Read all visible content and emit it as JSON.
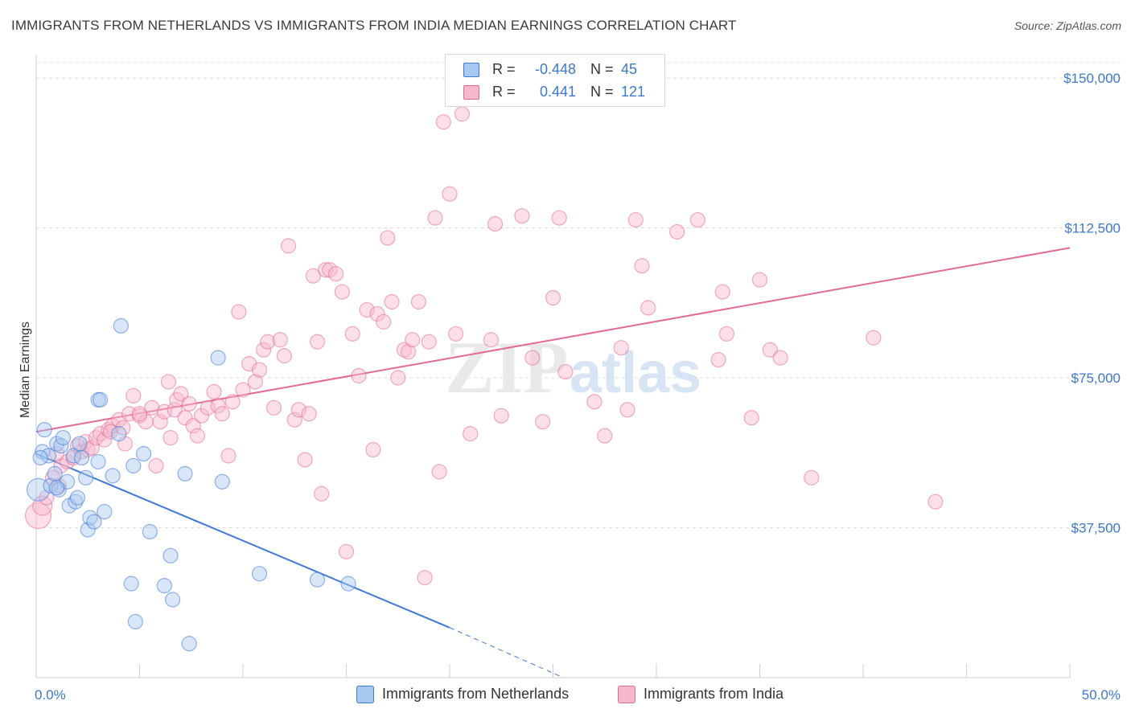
{
  "title": "IMMIGRANTS FROM NETHERLANDS VS IMMIGRANTS FROM INDIA MEDIAN EARNINGS CORRELATION CHART",
  "source": "Source: ZipAtlas.com",
  "watermark": "ZIPatlas",
  "legend": {
    "rows": [
      {
        "r_label": "R =",
        "r_value": "-0.448",
        "n_label": "N =",
        "n_value": "45",
        "color": "#a8c8f0"
      },
      {
        "r_label": "R =",
        "r_value": "0.441",
        "n_label": "N =",
        "n_value": "121",
        "color": "#f8b8cc"
      }
    ]
  },
  "bottom_legend": [
    {
      "label": "Immigrants from Netherlands",
      "color": "#a8c8f0"
    },
    {
      "label": "Immigrants from India",
      "color": "#f8b8cc"
    }
  ],
  "chart_data": {
    "type": "scatter",
    "title": "IMMIGRANTS FROM NETHERLANDS VS IMMIGRANTS FROM INDIA MEDIAN EARNINGS CORRELATION CHART",
    "xlabel": "",
    "ylabel": "Median Earnings",
    "xlim": [
      0,
      50
    ],
    "ylim": [
      0,
      150000
    ],
    "x_tick_labels": [
      "0.0%",
      "50.0%"
    ],
    "y_ticks": [
      37500,
      75000,
      112500,
      150000
    ],
    "y_tick_labels": [
      "$37,500",
      "$75,000",
      "$112,500",
      "$150,000"
    ],
    "grid": true,
    "legend_position": "top-center",
    "series": [
      {
        "name": "Immigrants from Netherlands",
        "color": "#3d78d8",
        "fill": "#a8c8f0",
        "trend": {
          "x": [
            0,
            20
          ],
          "y": [
            56000,
            12500
          ],
          "dashed_to": [
            25.5,
            0
          ]
        },
        "points": [
          [
            0.1,
            47000
          ],
          [
            0.3,
            56500
          ],
          [
            0.4,
            62000
          ],
          [
            0.6,
            55500
          ],
          [
            0.7,
            48000
          ],
          [
            0.9,
            51000
          ],
          [
            1.0,
            58500
          ],
          [
            1.1,
            47000
          ],
          [
            1.2,
            58000
          ],
          [
            1.3,
            60000
          ],
          [
            1.5,
            49000
          ],
          [
            1.6,
            43000
          ],
          [
            1.8,
            55500
          ],
          [
            1.9,
            44000
          ],
          [
            2.0,
            45000
          ],
          [
            2.1,
            58500
          ],
          [
            2.2,
            55000
          ],
          [
            2.4,
            50000
          ],
          [
            2.5,
            37000
          ],
          [
            2.6,
            40000
          ],
          [
            2.8,
            39000
          ],
          [
            3.0,
            54000
          ],
          [
            3.0,
            69500
          ],
          [
            3.1,
            69500
          ],
          [
            3.3,
            41500
          ],
          [
            3.7,
            50500
          ],
          [
            4.0,
            61000
          ],
          [
            4.1,
            88000
          ],
          [
            4.6,
            23500
          ],
          [
            4.7,
            53000
          ],
          [
            4.8,
            14000
          ],
          [
            5.2,
            56000
          ],
          [
            5.5,
            36500
          ],
          [
            6.2,
            23000
          ],
          [
            6.5,
            30500
          ],
          [
            6.6,
            19500
          ],
          [
            7.2,
            51000
          ],
          [
            7.4,
            8500
          ],
          [
            8.8,
            80000
          ],
          [
            9.0,
            49000
          ],
          [
            10.8,
            26000
          ],
          [
            13.6,
            24500
          ],
          [
            15.1,
            23500
          ],
          [
            0.2,
            55000
          ],
          [
            1.0,
            47500
          ]
        ]
      },
      {
        "name": "Immigrants from India",
        "color": "#e36a94",
        "fill": "#f8b8cc",
        "trend": {
          "x": [
            0,
            50
          ],
          "y": [
            61500,
            107500
          ]
        },
        "points": [
          [
            0.1,
            40500
          ],
          [
            0.3,
            43000
          ],
          [
            0.5,
            45000
          ],
          [
            0.8,
            50000
          ],
          [
            1.1,
            48000
          ],
          [
            1.2,
            53000
          ],
          [
            1.5,
            54000
          ],
          [
            1.8,
            55000
          ],
          [
            2.0,
            58000
          ],
          [
            2.2,
            56500
          ],
          [
            2.4,
            59000
          ],
          [
            2.5,
            57000
          ],
          [
            2.7,
            57500
          ],
          [
            2.9,
            60000
          ],
          [
            3.1,
            61000
          ],
          [
            3.3,
            59500
          ],
          [
            3.5,
            62000
          ],
          [
            3.7,
            63000
          ],
          [
            4.0,
            64500
          ],
          [
            4.2,
            62500
          ],
          [
            4.3,
            58500
          ],
          [
            4.5,
            66000
          ],
          [
            4.7,
            70500
          ],
          [
            5.0,
            65500
          ],
          [
            5.3,
            64000
          ],
          [
            5.6,
            67500
          ],
          [
            5.8,
            53000
          ],
          [
            6.0,
            64000
          ],
          [
            6.2,
            66500
          ],
          [
            6.4,
            74000
          ],
          [
            6.5,
            60000
          ],
          [
            6.7,
            67000
          ],
          [
            6.8,
            69500
          ],
          [
            7.0,
            71000
          ],
          [
            7.2,
            65000
          ],
          [
            7.4,
            68500
          ],
          [
            7.6,
            63000
          ],
          [
            7.8,
            60500
          ],
          [
            8.0,
            65500
          ],
          [
            8.3,
            67500
          ],
          [
            8.6,
            71500
          ],
          [
            8.8,
            68000
          ],
          [
            9.0,
            66000
          ],
          [
            9.3,
            55500
          ],
          [
            9.5,
            69000
          ],
          [
            9.8,
            91500
          ],
          [
            10.0,
            72000
          ],
          [
            10.3,
            78500
          ],
          [
            10.6,
            74000
          ],
          [
            10.8,
            77000
          ],
          [
            11.0,
            82000
          ],
          [
            11.2,
            84000
          ],
          [
            11.5,
            67500
          ],
          [
            11.8,
            84500
          ],
          [
            12.0,
            80500
          ],
          [
            12.2,
            108000
          ],
          [
            12.5,
            64500
          ],
          [
            12.7,
            67000
          ],
          [
            13.0,
            54500
          ],
          [
            13.2,
            66000
          ],
          [
            13.4,
            100500
          ],
          [
            13.6,
            84000
          ],
          [
            13.8,
            46000
          ],
          [
            14.0,
            102000
          ],
          [
            14.2,
            102000
          ],
          [
            14.5,
            101000
          ],
          [
            14.8,
            96500
          ],
          [
            15.0,
            31500
          ],
          [
            15.3,
            86000
          ],
          [
            15.6,
            75500
          ],
          [
            16.0,
            92000
          ],
          [
            16.3,
            57000
          ],
          [
            16.5,
            91000
          ],
          [
            16.8,
            89000
          ],
          [
            17.0,
            110000
          ],
          [
            17.2,
            94000
          ],
          [
            17.5,
            75000
          ],
          [
            17.8,
            82000
          ],
          [
            18.0,
            81500
          ],
          [
            18.2,
            84500
          ],
          [
            18.5,
            94000
          ],
          [
            18.8,
            25000
          ],
          [
            19.0,
            84000
          ],
          [
            19.3,
            115000
          ],
          [
            19.5,
            51500
          ],
          [
            19.7,
            139000
          ],
          [
            20.0,
            121000
          ],
          [
            20.3,
            86000
          ],
          [
            20.6,
            141000
          ],
          [
            21.0,
            61000
          ],
          [
            22.0,
            84500
          ],
          [
            22.2,
            113500
          ],
          [
            22.5,
            65500
          ],
          [
            23.5,
            115500
          ],
          [
            24.0,
            80000
          ],
          [
            24.5,
            64000
          ],
          [
            25.0,
            95000
          ],
          [
            25.3,
            115000
          ],
          [
            25.6,
            76500
          ],
          [
            27.0,
            69000
          ],
          [
            27.5,
            60500
          ],
          [
            28.3,
            82500
          ],
          [
            28.6,
            67000
          ],
          [
            29.0,
            114500
          ],
          [
            29.3,
            103000
          ],
          [
            29.6,
            92500
          ],
          [
            31.0,
            111500
          ],
          [
            32.0,
            114500
          ],
          [
            33.0,
            79500
          ],
          [
            33.2,
            96500
          ],
          [
            33.4,
            86000
          ],
          [
            34.6,
            65000
          ],
          [
            35.0,
            99500
          ],
          [
            35.5,
            82000
          ],
          [
            36.0,
            80000
          ],
          [
            37.5,
            50000
          ],
          [
            40.5,
            85000
          ],
          [
            43.5,
            44000
          ],
          [
            1.0,
            56000
          ],
          [
            3.6,
            61500
          ],
          [
            5.0,
            66000
          ]
        ]
      }
    ]
  }
}
